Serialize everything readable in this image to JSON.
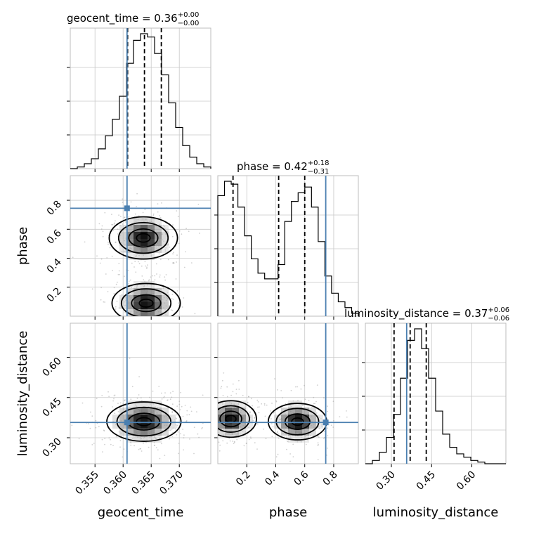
{
  "chart_data": {
    "type": "corner",
    "parameters": [
      "geocent_time",
      "phase",
      "luminosity_distance"
    ],
    "titles": [
      {
        "param": "geocent_time",
        "median": "0.36",
        "plus": "+0.00",
        "minus": "−0.00"
      },
      {
        "param": "phase",
        "median": "0.42",
        "plus": "+0.18",
        "minus": "−0.31"
      },
      {
        "param": "luminosity_distance",
        "median": "0.37",
        "plus": "+0.06",
        "minus": "−0.06"
      }
    ],
    "ranges": {
      "geocent_time": [
        0.3506,
        0.3756
      ],
      "phase": [
        0.0,
        0.97
      ],
      "luminosity_distance": [
        0.203,
        0.727
      ]
    },
    "truth": {
      "geocent_time": 0.3607,
      "phase": 0.745,
      "luminosity_distance": 0.357
    },
    "quantiles": {
      "geocent_time": [
        0.3608,
        0.3638,
        0.3668
      ],
      "phase": [
        0.105,
        0.42,
        0.6
      ],
      "luminosity_distance": [
        0.31,
        0.37,
        0.43
      ]
    },
    "ticks": {
      "geocent_time": {
        "values": [
          0.355,
          0.36,
          0.365,
          0.37
        ],
        "labels": [
          "0.355",
          "0.360",
          "0.365",
          "0.370"
        ]
      },
      "phase_x": {
        "values": [
          0.2,
          0.4,
          0.6,
          0.8
        ],
        "labels": [
          "0.2",
          "0.4",
          "0.6",
          "0.8"
        ]
      },
      "phase_y": {
        "values": [
          0.2,
          0.4,
          0.6,
          0.8
        ],
        "labels": [
          "0.2",
          "0.4",
          "0.6",
          "0.8"
        ]
      },
      "luminosity_distance": {
        "values": [
          0.3,
          0.45,
          0.6
        ],
        "labels": [
          "0.30",
          "0.45",
          "0.60"
        ]
      }
    },
    "histograms": {
      "geocent_time": {
        "range": [
          0.3506,
          0.3756
        ],
        "counts": [
          0,
          1,
          3,
          6,
          12,
          20,
          30,
          44,
          64,
          78,
          82,
          80,
          70,
          57,
          40,
          25,
          14,
          7,
          3,
          1
        ]
      },
      "phase": {
        "range": [
          0.0,
          0.97
        ],
        "counts": [
          42,
          47,
          46,
          38,
          28,
          20,
          15,
          13,
          13,
          18,
          33,
          40,
          43,
          45,
          38,
          26,
          14,
          8,
          5,
          3,
          1
        ]
      },
      "luminosity_distance": {
        "range": [
          0.203,
          0.727
        ],
        "counts": [
          0,
          2,
          7,
          16,
          30,
          52,
          75,
          82,
          70,
          52,
          32,
          18,
          10,
          6,
          4,
          2,
          1,
          0,
          0,
          0
        ]
      }
    },
    "grid": true
  },
  "labels": {
    "x": [
      "geocent_time",
      "phase",
      "luminosity_distance"
    ],
    "y": [
      "phase",
      "luminosity_distance"
    ]
  }
}
